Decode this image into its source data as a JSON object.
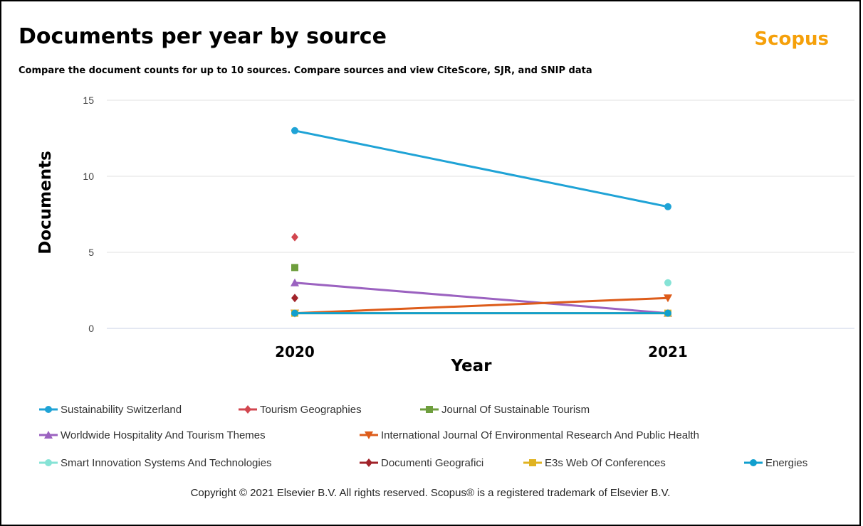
{
  "header": {
    "title": "Documents per year by source",
    "brand": "Scopus",
    "subtitle": "Compare the document counts for up to 10 sources. Compare sources and view CiteScore, SJR, and SNIP data"
  },
  "chart_data": {
    "type": "line",
    "title": "Documents per year by source",
    "subtitle": "Compare the document counts for up to 10 sources. Compare sources and view CiteScore, SJR, and SNIP data",
    "xlabel": "Year",
    "ylabel": "Documents",
    "categories": [
      "2020",
      "2021"
    ],
    "ylim": [
      0,
      15
    ],
    "yticks": [
      0,
      5,
      10,
      15
    ],
    "grid": true,
    "legend_position": "bottom",
    "series": [
      {
        "name": "Sustainability Switzerland",
        "values": [
          13,
          8
        ],
        "color": "#1fa3d6",
        "marker": "circle"
      },
      {
        "name": "Tourism Geographies",
        "values": [
          6,
          null
        ],
        "color": "#d2464f",
        "marker": "diamond"
      },
      {
        "name": "Journal Of Sustainable Tourism",
        "values": [
          4,
          null
        ],
        "color": "#6e9e3d",
        "marker": "square"
      },
      {
        "name": "Worldwide Hospitality And Tourism Themes",
        "values": [
          3,
          1
        ],
        "color": "#9b62c0",
        "marker": "triangle-up"
      },
      {
        "name": "International Journal Of Environmental Research And Public Health",
        "values": [
          1,
          2
        ],
        "color": "#dd5c1a",
        "marker": "triangle-down"
      },
      {
        "name": "Smart Innovation Systems And Technologies",
        "values": [
          null,
          3
        ],
        "color": "#86e3d6",
        "marker": "circle"
      },
      {
        "name": "Documenti Geografici",
        "values": [
          2,
          null
        ],
        "color": "#a1232a",
        "marker": "diamond"
      },
      {
        "name": "E3s Web Of Conferences",
        "values": [
          1,
          1
        ],
        "color": "#e0b321",
        "marker": "square"
      },
      {
        "name": "Energies",
        "values": [
          1,
          1
        ],
        "color": "#109fce",
        "marker": "circle"
      }
    ]
  },
  "footer": {
    "copyright": "Copyright © 2021 Elsevier B.V. All rights reserved. Scopus® is a registered trademark of Elsevier B.V."
  }
}
